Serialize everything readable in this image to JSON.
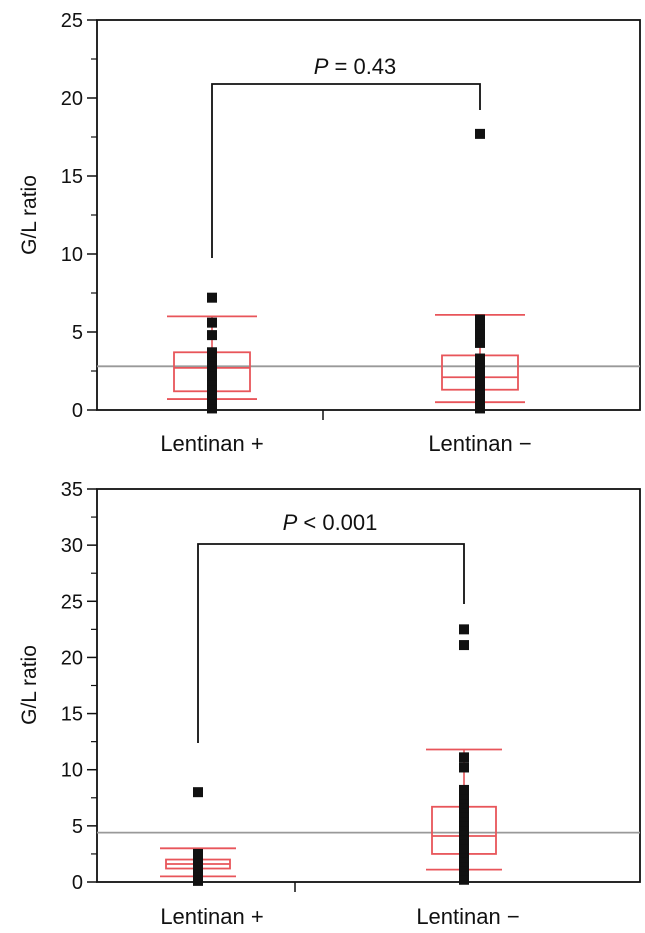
{
  "chart_data": [
    {
      "type": "box",
      "ylabel": "G/L ratio",
      "ylim": [
        0,
        25
      ],
      "yticks": [
        "0",
        "5",
        "10",
        "15",
        "20",
        "25"
      ],
      "reference_line": 2.8,
      "categories": [
        "Lentinan +",
        "Lentinan −"
      ],
      "annotation": {
        "italic": "P",
        "text": " = 0.43"
      },
      "boxes": [
        {
          "whisker_low": 0.7,
          "q1": 1.2,
          "median": 2.7,
          "q3": 3.7,
          "whisker_high": 6.0,
          "points": [
            0.1,
            0.4,
            0.7,
            1.0,
            1.3,
            1.6,
            1.9,
            2.2,
            2.5,
            2.8,
            3.1,
            3.4,
            3.7,
            4.8,
            5.6,
            7.2
          ]
        },
        {
          "whisker_low": 0.5,
          "q1": 1.3,
          "median": 2.1,
          "q3": 3.5,
          "whisker_high": 6.1,
          "points": [
            0.1,
            0.4,
            0.7,
            1.0,
            1.3,
            1.6,
            1.9,
            2.3,
            2.7,
            3.0,
            3.3,
            4.3,
            4.6,
            4.9,
            5.2,
            5.5,
            5.8,
            17.7
          ]
        }
      ]
    },
    {
      "type": "box",
      "ylabel": "G/L ratio",
      "ylim": [
        0,
        35
      ],
      "yticks": [
        "0",
        "5",
        "10",
        "15",
        "20",
        "25",
        "30",
        "35"
      ],
      "reference_line": 4.4,
      "categories": [
        "Lentinan +",
        "Lentinan −"
      ],
      "annotation": {
        "italic": "P",
        "text": " < 0.001"
      },
      "boxes": [
        {
          "whisker_low": 0.5,
          "q1": 1.2,
          "median": 1.6,
          "q3": 2.0,
          "whisker_high": 3.0,
          "points": [
            0.1,
            0.4,
            0.7,
            1.0,
            1.3,
            1.6,
            1.9,
            2.2,
            2.5,
            8.0
          ]
        },
        {
          "whisker_low": 1.1,
          "q1": 2.5,
          "median": 4.1,
          "q3": 6.7,
          "whisker_high": 11.8,
          "points": [
            0.2,
            0.6,
            1.0,
            1.4,
            1.8,
            2.2,
            2.6,
            3.0,
            3.4,
            3.8,
            4.2,
            4.6,
            5.0,
            5.4,
            5.8,
            6.2,
            6.6,
            7.0,
            7.4,
            7.8,
            8.2,
            10.2,
            11.1,
            21.1,
            22.5
          ]
        }
      ]
    }
  ]
}
